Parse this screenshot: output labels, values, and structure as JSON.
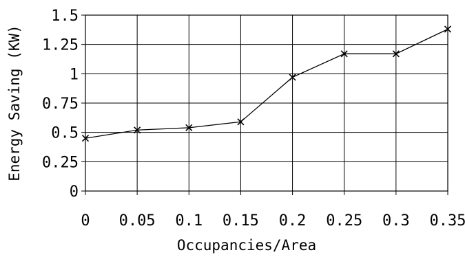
{
  "chart_data": {
    "type": "line",
    "title": "",
    "xlabel": "Occupancies/Area",
    "ylabel": "Energy Saving (KW)",
    "x": [
      0,
      0.05,
      0.1,
      0.15,
      0.2,
      0.25,
      0.3,
      0.35
    ],
    "x_tick_labels": [
      "0",
      "0.05",
      "0.1",
      "0.15",
      "0.2",
      "0.25",
      "0.3",
      "0.35"
    ],
    "xlim": [
      0,
      0.35
    ],
    "y_ticks": [
      0,
      0.25,
      0.5,
      0.75,
      1,
      1.25,
      1.5
    ],
    "y_tick_labels": [
      "0",
      "0.25",
      "0.5",
      "0.75",
      "1",
      "1.25",
      "1.5"
    ],
    "ylim": [
      0,
      1.5
    ],
    "grid": true,
    "legend": "none",
    "series": [
      {
        "marker": "x",
        "color": "#000000",
        "values": [
          0.45,
          0.52,
          0.54,
          0.59,
          0.97,
          1.17,
          1.17,
          1.38
        ]
      }
    ]
  }
}
